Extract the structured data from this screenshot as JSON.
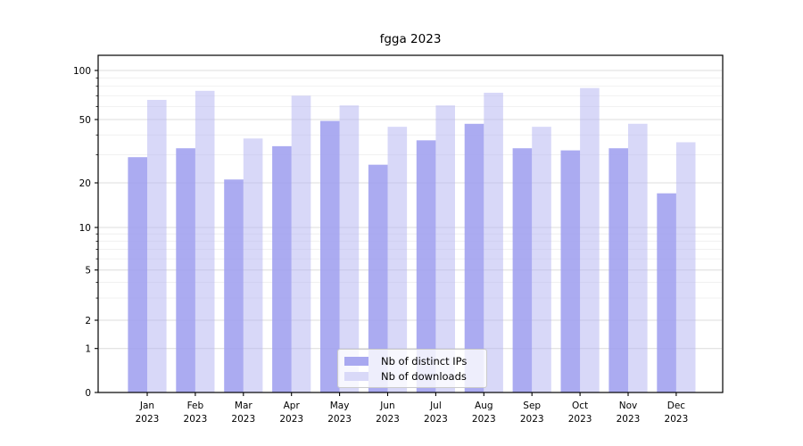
{
  "title": "fgga 2023",
  "chart_data": {
    "type": "bar",
    "title": "fgga 2023",
    "xlabel": "",
    "ylabel": "",
    "yscale": "symlog-like (log above 1, linear to 0)",
    "ylim": [
      0,
      125
    ],
    "y_ticks": [
      0,
      1,
      2,
      5,
      10,
      20,
      50,
      100
    ],
    "y_minor_ticks": [
      3,
      4,
      6,
      7,
      8,
      9,
      30,
      40,
      60,
      70,
      80,
      90
    ],
    "grid": "horizontal major and minor gridlines",
    "legend_position": "lower center",
    "categories": [
      "Jan 2023",
      "Feb 2023",
      "Mar 2023",
      "Apr 2023",
      "May 2023",
      "Jun 2023",
      "Jul 2023",
      "Aug 2023",
      "Sep 2023",
      "Oct 2023",
      "Nov 2023",
      "Dec 2023"
    ],
    "series": [
      {
        "name": "Nb of distinct IPs",
        "color": "#a8a8f0",
        "values": [
          29,
          33,
          21,
          34,
          49,
          26,
          37,
          47,
          33,
          32,
          33,
          17
        ]
      },
      {
        "name": "Nb of downloads",
        "color": "#d9d9f8",
        "values": [
          66,
          75,
          38,
          70,
          61,
          45,
          61,
          73,
          45,
          78,
          47,
          36
        ]
      }
    ]
  },
  "colors": {
    "bar_distinct_ips": "#a8a8f0",
    "bar_downloads": "#d9d9f8",
    "grid_major": "#dcdcdc",
    "grid_minor": "#efefef",
    "axis": "#000000"
  }
}
